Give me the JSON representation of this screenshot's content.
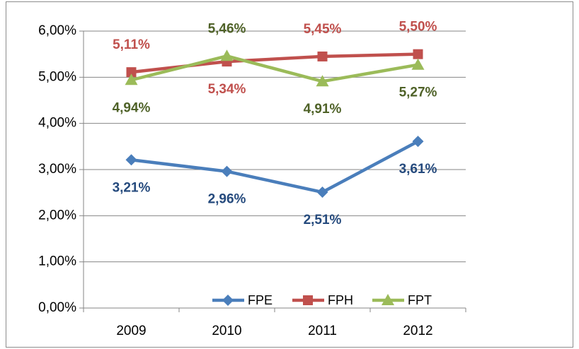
{
  "chart_data": {
    "type": "line",
    "categories": [
      "2009",
      "2010",
      "2011",
      "2012"
    ],
    "series": [
      {
        "name": "FPE",
        "color": "#4a7ebb",
        "label_color": "#254a7d",
        "marker": "diamond",
        "values": [
          3.21,
          2.96,
          2.51,
          3.61
        ],
        "value_labels": [
          "3,21%",
          "2,96%",
          "2,51%",
          "3,61%"
        ]
      },
      {
        "name": "FPH",
        "color": "#c0504d",
        "label_color": "#c0504d",
        "marker": "square",
        "values": [
          5.11,
          5.34,
          5.45,
          5.5
        ],
        "value_labels": [
          "5,11%",
          "5,34%",
          "5,45%",
          "5,50%"
        ]
      },
      {
        "name": "FPT",
        "color": "#9bbb59",
        "label_color": "#4f6228",
        "marker": "triangle",
        "values": [
          4.94,
          5.46,
          4.91,
          5.27
        ],
        "value_labels": [
          "4,94%",
          "5,46%",
          "4,91%",
          "5,27%"
        ]
      }
    ],
    "ylim": [
      0,
      6
    ],
    "yticks": [
      {
        "value": 0,
        "label": "0,00%"
      },
      {
        "value": 1,
        "label": "1,00%"
      },
      {
        "value": 2,
        "label": "2,00%"
      },
      {
        "value": 3,
        "label": "3,00%"
      },
      {
        "value": 4,
        "label": "4,00%"
      },
      {
        "value": 5,
        "label": "5,00%"
      },
      {
        "value": 6,
        "label": "6,00%"
      }
    ],
    "grid": true,
    "legend": "bottom"
  }
}
